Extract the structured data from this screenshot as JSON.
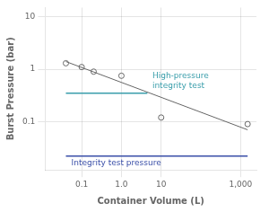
{
  "chart_data": {
    "type": "scatter",
    "log": true,
    "grid": true,
    "xlabel": "Container Volume (L)",
    "ylabel": "Burst Pressure (bar)",
    "xlim": [
      0.012,
      2500.0
    ],
    "ylim": [
      0.012,
      15.0
    ],
    "xticks": [
      0.1,
      {
        "value": 1.0,
        "label": "1.0"
      },
      10,
      {
        "value": 1000,
        "label": "1,000"
      }
    ],
    "yticks": [
      0.1,
      1,
      10
    ],
    "series": [
      {
        "type": "line",
        "color": "#666666",
        "x": [
          0.04,
          1500.0
        ],
        "values": [
          1.4,
          0.07
        ]
      },
      {
        "type": "scatter",
        "marker": "open_circle",
        "color": "#666666",
        "x": [
          0.04,
          0.1,
          0.2,
          1.0,
          10.0,
          1500.0
        ],
        "values": [
          1.3,
          1.1,
          0.9,
          0.75,
          0.12,
          0.09
        ]
      },
      {
        "type": "line",
        "color": "#3a9eab",
        "x": [
          0.04,
          4.5
        ],
        "values": [
          0.35,
          0.35
        ]
      },
      {
        "type": "line",
        "color": "#3a4fa8",
        "x": [
          0.04,
          1500.0
        ],
        "values": [
          0.022,
          0.022
        ]
      }
    ],
    "annotations": [
      {
        "text": "High-pressure\nintegrity test",
        "x": 6.0,
        "y": 0.4,
        "color": "#3a9eab"
      },
      {
        "text": "Integrity test pressure",
        "x": 0.055,
        "y": 0.019,
        "color": "#3a4fa8"
      }
    ]
  }
}
